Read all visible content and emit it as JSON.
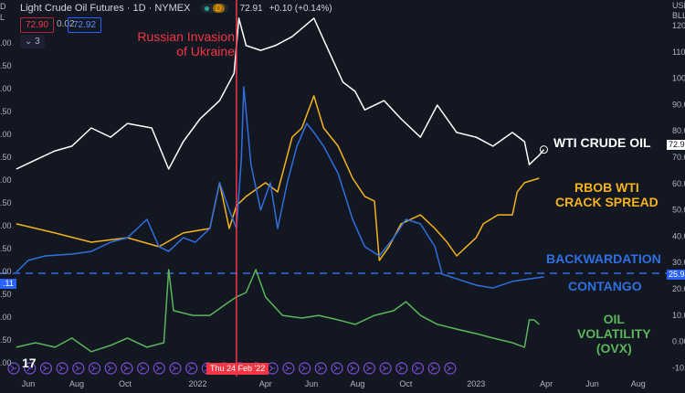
{
  "header": {
    "title": "Light Crude Oil Futures · 1D · NYMEX",
    "market_status_dot": "#26a69a",
    "delay_badge": "D",
    "price": "72.91",
    "change": "+0.10 (+0.14%)",
    "bid": "72.90",
    "spread": "0.02",
    "ask": "72.92",
    "indicators_toggle": "3",
    "currency": "USD",
    "unit": "BLL"
  },
  "left_axis_labels": [
    ".00",
    ".50",
    ".00",
    ".50",
    ".00",
    ".50",
    ".00",
    ".50",
    ".00",
    ".50",
    ".00",
    ".50",
    ".00",
    ".50",
    ".00"
  ],
  "left_axis_tag": ".11",
  "left_top": [
    "D",
    "L"
  ],
  "annotations": {
    "event_line1": "Russian Invasion",
    "event_line2": "of Ukraine",
    "event_date": "Thu 24 Feb '22",
    "wti": "WTI CRUDE OIL",
    "crack1": "RBOB WTI",
    "crack2": "CRACK SPREAD",
    "backwardation": "BACKWARDATION",
    "contango": "CONTANGO",
    "ovx1": "OIL",
    "ovx2": "VOLATILITY",
    "ovx3": "(OVX)"
  },
  "price_tags": {
    "wti": "72.91",
    "threshold": "25.91"
  },
  "colors": {
    "bg": "#131722",
    "wti": "#ffffff",
    "crack": "#f5b31d",
    "blue": "#2f6fe0",
    "ovx": "#5bb55b",
    "event": "#f23645",
    "icon": "#7b4fd6"
  },
  "chart_data": {
    "type": "line",
    "title": "Light Crude Oil Futures · 1D · NYMEX",
    "x_unit": "months since Jun 2021",
    "xlim": [
      -0.6,
      26.5
    ],
    "ylim": [
      -12,
      124
    ],
    "y_ticks": [
      120,
      110,
      100,
      90,
      80,
      70,
      60,
      50,
      40,
      30,
      20,
      10,
      0,
      -10
    ],
    "y_tick_labels": [
      "120.00",
      "110.00",
      "100.00",
      "90.00",
      "80.00",
      "70.00",
      "60.00",
      "50.00",
      "40.00",
      "30.00",
      "20.00",
      "10.00",
      "0.00",
      "-10.00"
    ],
    "x_ticks": [
      {
        "m": 0,
        "label": "Jun"
      },
      {
        "m": 2,
        "label": "Aug"
      },
      {
        "m": 4,
        "label": "Oct"
      },
      {
        "m": 7,
        "label": "2022"
      },
      {
        "m": 9.8,
        "label": "Apr"
      },
      {
        "m": 11.7,
        "label": "Jun"
      },
      {
        "m": 13.6,
        "label": "Aug"
      },
      {
        "m": 15.6,
        "label": "Oct"
      },
      {
        "m": 18.5,
        "label": "2023"
      },
      {
        "m": 21.4,
        "label": "Apr"
      },
      {
        "m": 23.3,
        "label": "Jun"
      },
      {
        "m": 25.2,
        "label": "Aug"
      }
    ],
    "event_m": 8.6,
    "threshold": 25.91,
    "icon_count": 28,
    "series": [
      {
        "name": "WTI Crude Oil",
        "key": "wti",
        "points": [
          [
            -0.5,
            65.5
          ],
          [
            0.3,
            69
          ],
          [
            1.1,
            72.4
          ],
          [
            1.8,
            74.2
          ],
          [
            2.6,
            81.1
          ],
          [
            3.4,
            77.6
          ],
          [
            4.1,
            82.8
          ],
          [
            5.1,
            81.1
          ],
          [
            5.8,
            65.5
          ],
          [
            6.4,
            75.9
          ],
          [
            7.1,
            84.6
          ],
          [
            7.9,
            91.5
          ],
          [
            8.5,
            101.9
          ],
          [
            8.7,
            122.8
          ],
          [
            9.0,
            112.4
          ],
          [
            9.6,
            110.6
          ],
          [
            10.2,
            112.4
          ],
          [
            10.9,
            115.8
          ],
          [
            11.8,
            122.8
          ],
          [
            12.4,
            110.6
          ],
          [
            13.0,
            98.5
          ],
          [
            13.5,
            95
          ],
          [
            13.9,
            88
          ],
          [
            14.7,
            91.5
          ],
          [
            15.4,
            84.6
          ],
          [
            16.2,
            77.6
          ],
          [
            16.9,
            89.8
          ],
          [
            17.7,
            79.4
          ],
          [
            18.5,
            77.6
          ],
          [
            19.2,
            74.2
          ],
          [
            20.0,
            79.4
          ],
          [
            20.5,
            75.9
          ],
          [
            20.7,
            67.2
          ],
          [
            21.1,
            70.7
          ],
          [
            21.3,
            72.9
          ]
        ]
      },
      {
        "name": "RBOB WTI Crack Spread",
        "key": "crack",
        "points": [
          [
            -0.5,
            44.7
          ],
          [
            1.1,
            41.2
          ],
          [
            2.6,
            37.7
          ],
          [
            4.1,
            39.4
          ],
          [
            5.4,
            36
          ],
          [
            6.4,
            41.2
          ],
          [
            7.5,
            42.9
          ],
          [
            7.9,
            60.3
          ],
          [
            8.3,
            42.9
          ],
          [
            8.6,
            51.6
          ],
          [
            9.0,
            55.1
          ],
          [
            9.8,
            60.3
          ],
          [
            10.3,
            56.8
          ],
          [
            10.9,
            77.6
          ],
          [
            11.3,
            81.1
          ],
          [
            11.8,
            93.3
          ],
          [
            12.2,
            81.1
          ],
          [
            12.8,
            74.2
          ],
          [
            13.4,
            62
          ],
          [
            13.9,
            55.1
          ],
          [
            14.3,
            53.3
          ],
          [
            14.5,
            30.8
          ],
          [
            14.9,
            36
          ],
          [
            15.4,
            44.7
          ],
          [
            16.2,
            48.1
          ],
          [
            16.8,
            42.9
          ],
          [
            17.3,
            37.7
          ],
          [
            17.7,
            32.5
          ],
          [
            18.1,
            36
          ],
          [
            18.5,
            39.4
          ],
          [
            18.8,
            44.7
          ],
          [
            19.4,
            48.1
          ],
          [
            20.0,
            48.1
          ],
          [
            20.2,
            56.8
          ],
          [
            20.5,
            60.3
          ],
          [
            21.1,
            62
          ]
        ]
      },
      {
        "name": "Backwardation / Contango",
        "key": "blue",
        "points": [
          [
            -0.5,
            26.3
          ],
          [
            0,
            30.8
          ],
          [
            0.7,
            32.5
          ],
          [
            1.8,
            33.2
          ],
          [
            2.6,
            34.2
          ],
          [
            3.4,
            37.7
          ],
          [
            4.1,
            39.4
          ],
          [
            4.9,
            46.4
          ],
          [
            5.4,
            36
          ],
          [
            5.8,
            34.2
          ],
          [
            6.4,
            39.4
          ],
          [
            6.9,
            37.7
          ],
          [
            7.5,
            42.9
          ],
          [
            7.9,
            60.3
          ],
          [
            8.3,
            49.9
          ],
          [
            8.6,
            42.9
          ],
          [
            8.8,
            69
          ],
          [
            8.9,
            96.7
          ],
          [
            9.2,
            67.2
          ],
          [
            9.6,
            49.9
          ],
          [
            10.0,
            60.3
          ],
          [
            10.3,
            42.9
          ],
          [
            10.7,
            60.3
          ],
          [
            11.1,
            74.2
          ],
          [
            11.5,
            82.8
          ],
          [
            11.8,
            79.4
          ],
          [
            12.2,
            74.2
          ],
          [
            12.8,
            63.8
          ],
          [
            13.4,
            46.4
          ],
          [
            13.9,
            36
          ],
          [
            14.5,
            32.5
          ],
          [
            15.1,
            39.4
          ],
          [
            15.6,
            46.4
          ],
          [
            16.2,
            44.7
          ],
          [
            16.8,
            36
          ],
          [
            17.1,
            25.6
          ],
          [
            17.7,
            23.8
          ],
          [
            18.5,
            21.4
          ],
          [
            19.2,
            20.3
          ],
          [
            20.0,
            22.8
          ],
          [
            20.7,
            23.8
          ],
          [
            21.3,
            24.5
          ]
        ]
      },
      {
        "name": "Oil Volatility (OVX)",
        "key": "ovx",
        "points": [
          [
            -0.5,
            -2.2
          ],
          [
            0.3,
            -0.5
          ],
          [
            1.1,
            -2.2
          ],
          [
            1.8,
            1.3
          ],
          [
            2.6,
            -3.9
          ],
          [
            3.4,
            -1.5
          ],
          [
            4.1,
            1.3
          ],
          [
            4.9,
            -2.2
          ],
          [
            5.6,
            -0.5
          ],
          [
            5.8,
            27.3
          ],
          [
            6.0,
            11.7
          ],
          [
            6.8,
            9.9
          ],
          [
            7.5,
            9.9
          ],
          [
            8.3,
            15.1
          ],
          [
            8.6,
            16.9
          ],
          [
            9.0,
            18.6
          ],
          [
            9.4,
            27.3
          ],
          [
            9.8,
            16.9
          ],
          [
            10.5,
            9.9
          ],
          [
            11.3,
            8.9
          ],
          [
            12.0,
            9.9
          ],
          [
            12.8,
            8.2
          ],
          [
            13.5,
            6.5
          ],
          [
            14.3,
            9.9
          ],
          [
            15.1,
            11.7
          ],
          [
            15.6,
            15.1
          ],
          [
            16.2,
            9.9
          ],
          [
            16.9,
            6.5
          ],
          [
            17.7,
            4.7
          ],
          [
            18.5,
            3
          ],
          [
            19.2,
            1.3
          ],
          [
            20.0,
            -0.5
          ],
          [
            20.5,
            -2.2
          ],
          [
            20.7,
            8.2
          ],
          [
            20.9,
            8.2
          ],
          [
            21.1,
            6.5
          ]
        ]
      }
    ]
  }
}
